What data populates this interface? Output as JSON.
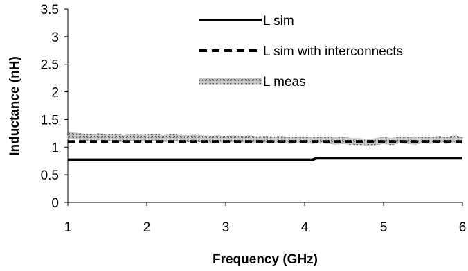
{
  "chart_data": {
    "type": "line",
    "xlabel": "Frequency (GHz)",
    "ylabel": "Inductance (nH)",
    "xlim": [
      1,
      6
    ],
    "ylim": [
      0,
      3.5
    ],
    "xticks": [
      "1",
      "2",
      "3",
      "4",
      "5",
      "6"
    ],
    "yticks": [
      "0",
      "0.5",
      "1",
      "1.5",
      "2",
      "2.5",
      "3",
      "3.5"
    ],
    "grid": false,
    "legend_position": "top-center",
    "series": [
      {
        "name": "L sim",
        "style": "solid",
        "color": "#000000",
        "x": [
          1.0,
          1.5,
          2.0,
          2.5,
          3.0,
          3.5,
          4.0,
          4.1,
          4.15,
          4.5,
          5.0,
          5.5,
          6.0
        ],
        "y": [
          0.77,
          0.77,
          0.77,
          0.77,
          0.77,
          0.77,
          0.77,
          0.77,
          0.8,
          0.8,
          0.8,
          0.8,
          0.8
        ]
      },
      {
        "name": "L sim with interconnects",
        "style": "dashed",
        "color": "#000000",
        "x": [
          1.0,
          1.5,
          2.0,
          2.5,
          3.0,
          3.5,
          4.0,
          4.5,
          5.0,
          5.5,
          6.0
        ],
        "y": [
          1.1,
          1.1,
          1.1,
          1.1,
          1.1,
          1.1,
          1.1,
          1.1,
          1.1,
          1.1,
          1.1
        ]
      },
      {
        "name": "L meas",
        "style": "textured",
        "color": "#888888",
        "x": [
          1.0,
          1.1,
          1.2,
          1.3,
          1.4,
          1.5,
          1.6,
          1.7,
          1.8,
          1.9,
          2.0,
          2.1,
          2.2,
          2.3,
          2.4,
          2.5,
          2.6,
          2.7,
          2.8,
          2.9,
          3.0,
          3.1,
          3.2,
          3.3,
          3.4,
          3.5,
          3.6,
          3.7,
          3.8,
          3.9,
          4.0,
          4.1,
          4.2,
          4.3,
          4.4,
          4.5,
          4.6,
          4.7,
          4.8,
          4.9,
          5.0,
          5.1,
          5.2,
          5.3,
          5.4,
          5.5,
          5.6,
          5.7,
          5.8,
          5.9,
          6.0
        ],
        "y": [
          1.22,
          1.2,
          1.18,
          1.17,
          1.19,
          1.16,
          1.18,
          1.15,
          1.17,
          1.16,
          1.16,
          1.18,
          1.15,
          1.17,
          1.16,
          1.15,
          1.16,
          1.15,
          1.14,
          1.15,
          1.14,
          1.15,
          1.14,
          1.15,
          1.13,
          1.14,
          1.13,
          1.14,
          1.12,
          1.13,
          1.13,
          1.12,
          1.13,
          1.12,
          1.11,
          1.12,
          1.1,
          1.1,
          1.08,
          1.1,
          1.12,
          1.1,
          1.13,
          1.12,
          1.11,
          1.13,
          1.12,
          1.14,
          1.12,
          1.15,
          1.12
        ]
      }
    ]
  }
}
